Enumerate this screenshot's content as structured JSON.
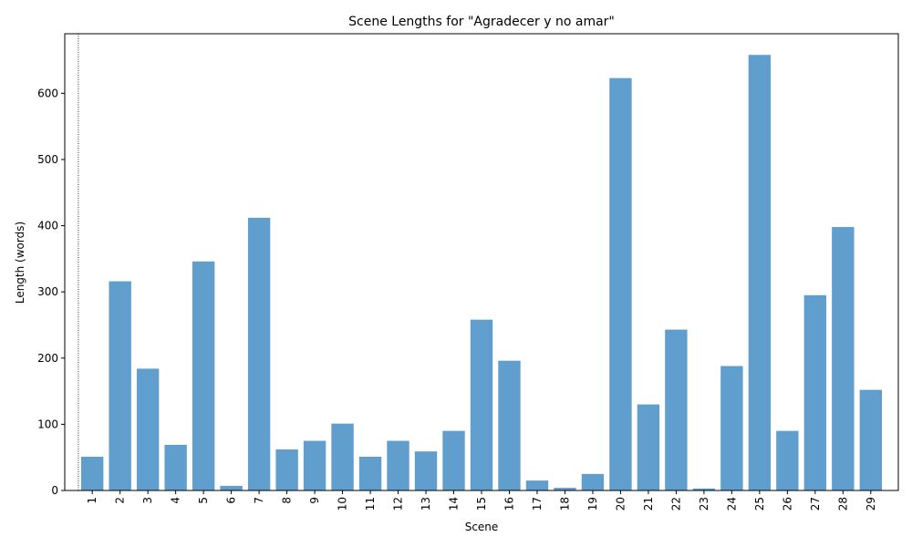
{
  "chart_data": {
    "type": "bar",
    "title": "Scene Lengths for \"Agradecer y no amar\"",
    "xlabel": "Scene",
    "ylabel": "Length (words)",
    "categories": [
      "1",
      "2",
      "3",
      "4",
      "5",
      "6",
      "7",
      "8",
      "9",
      "10",
      "11",
      "12",
      "13",
      "14",
      "15",
      "16",
      "17",
      "18",
      "19",
      "20",
      "21",
      "22",
      "23",
      "24",
      "25",
      "26",
      "27",
      "28",
      "29"
    ],
    "values": [
      51,
      316,
      184,
      69,
      346,
      7,
      412,
      62,
      75,
      101,
      51,
      75,
      59,
      90,
      258,
      196,
      15,
      4,
      25,
      623,
      130,
      243,
      3,
      188,
      658,
      90,
      295,
      398,
      152
    ],
    "yticks": [
      0,
      100,
      200,
      300,
      400,
      500,
      600
    ],
    "ylim": [
      0,
      690
    ],
    "grid": false,
    "marker_line": {
      "after_category_index": 0,
      "style": "dotted"
    },
    "colors": {
      "bar": "#5f9ecd",
      "axis": "#000000",
      "marker_line": "#000000"
    }
  }
}
